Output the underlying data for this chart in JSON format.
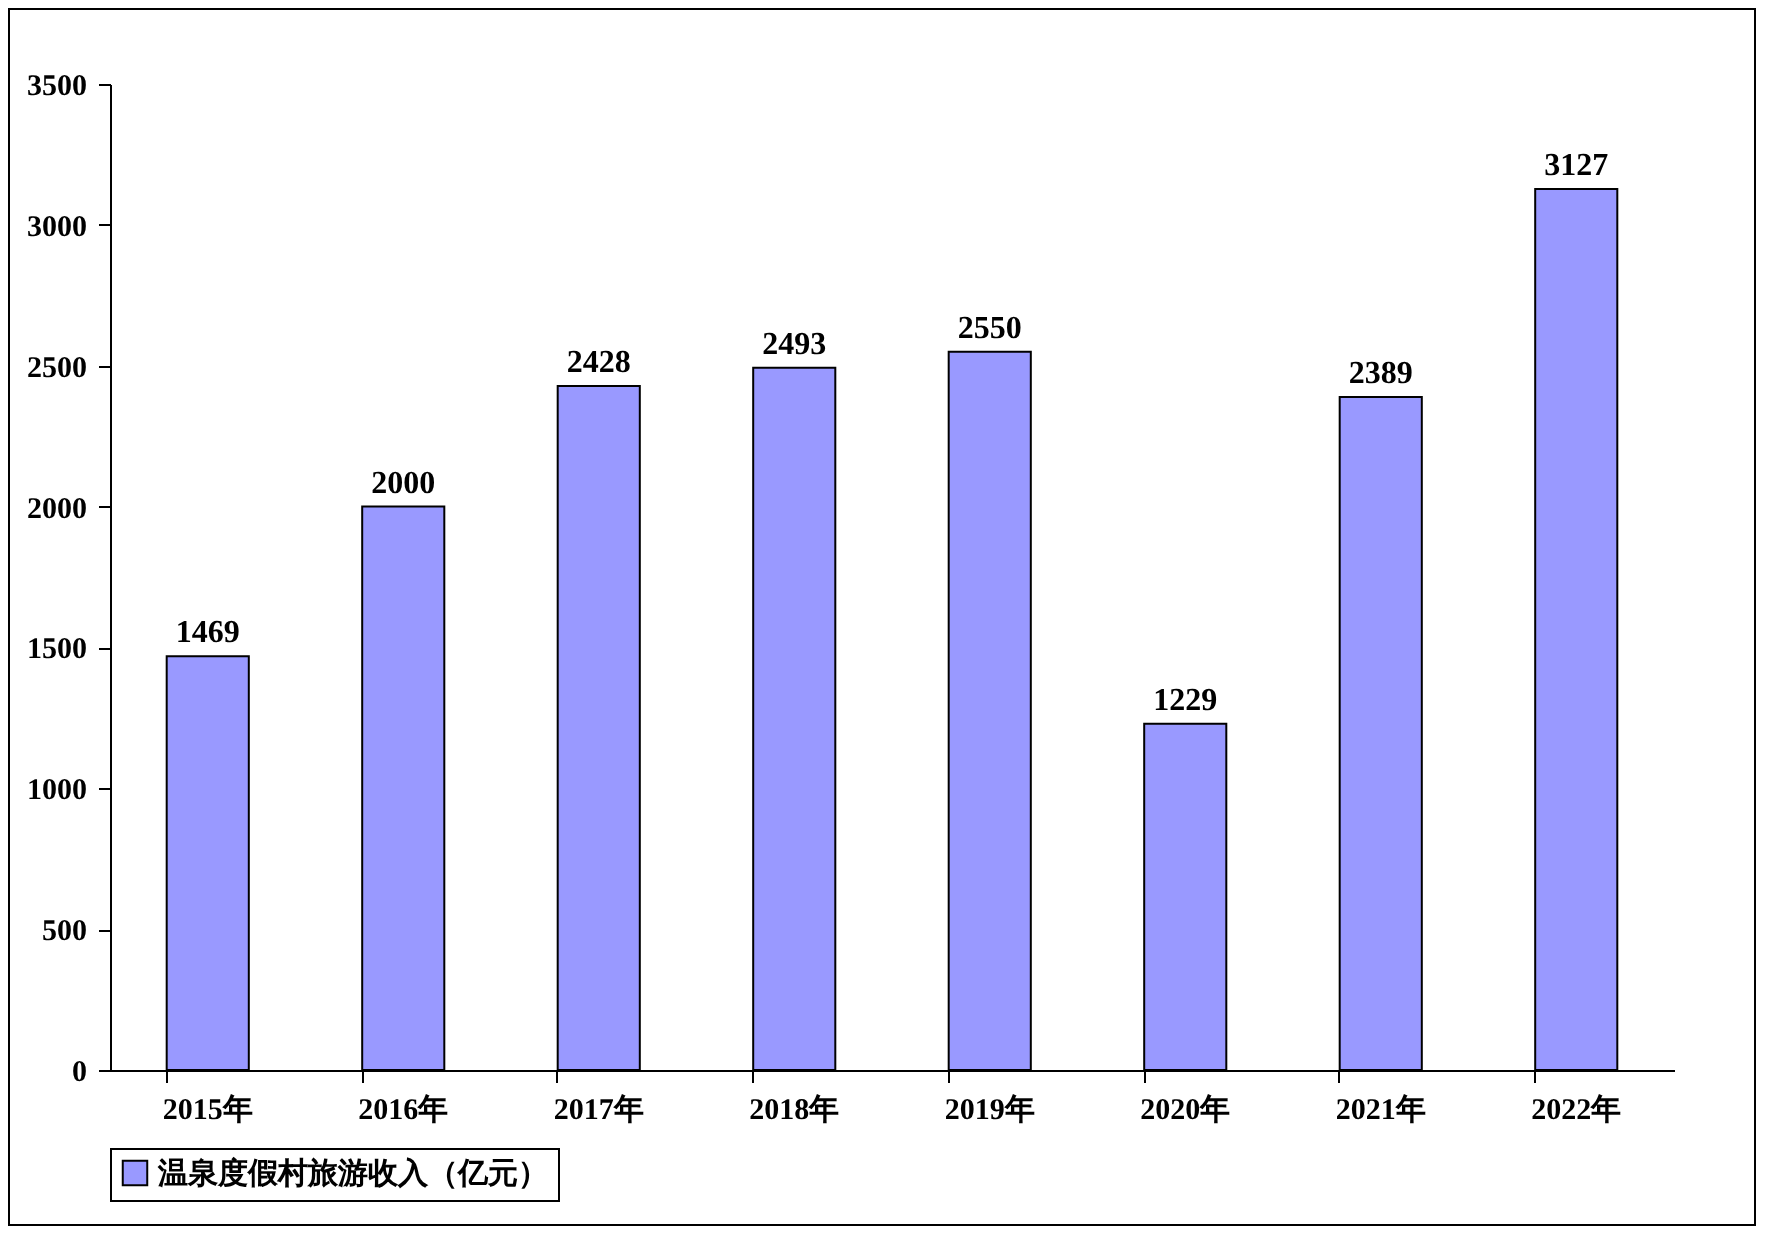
{
  "chart_data": {
    "type": "bar",
    "categories": [
      "2015年",
      "2016年",
      "2017年",
      "2018年",
      "2019年",
      "2020年",
      "2021年",
      "2022年"
    ],
    "series": [
      {
        "name": "温泉度假村旅游收入（亿元）",
        "color": "#9999ff",
        "values": [
          1469,
          2000,
          2428,
          2493,
          2550,
          1229,
          2389,
          3127
        ]
      }
    ],
    "ylim": [
      0,
      3500
    ],
    "yticks": [
      0,
      500,
      1000,
      1500,
      2000,
      2500,
      3000,
      3500
    ],
    "grid": false,
    "legend": "bottom",
    "data_labels": true
  }
}
